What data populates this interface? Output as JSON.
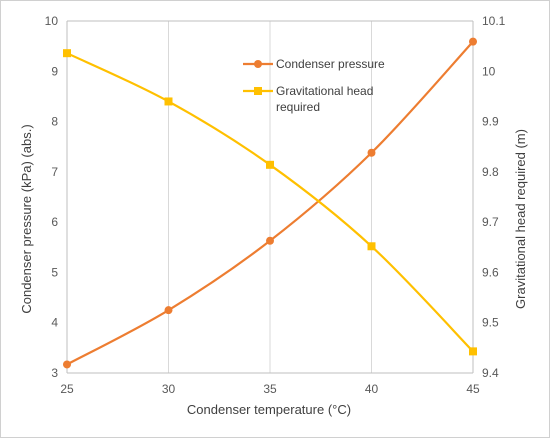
{
  "chart_data": {
    "type": "line",
    "xlabel": "Condenser temperature (°C)",
    "ylabel_left": "Condenser pressure (kPa) (abs.)",
    "ylabel_right": "Gravitational head required  (m)",
    "x": [
      25,
      30,
      35,
      40,
      45
    ],
    "xlim": [
      25,
      45
    ],
    "x_ticks": [
      "25",
      "30",
      "35",
      "40",
      "45"
    ],
    "ylim_left": [
      3,
      10
    ],
    "y_ticks_left": [
      "3",
      "4",
      "5",
      "6",
      "7",
      "8",
      "9",
      "10"
    ],
    "ylim_right": [
      9.4,
      10.1
    ],
    "y_ticks_right": [
      "9.4",
      "9.5",
      "9.6",
      "9.7",
      "9.8",
      "9.9",
      "10",
      "10.1"
    ],
    "grid": "vertical",
    "legend_position": "top-center",
    "series": [
      {
        "name": "Condenser pressure",
        "axis": "left",
        "color": "#ED7D31",
        "marker": "circle",
        "values": [
          3.17,
          4.25,
          5.63,
          7.38,
          9.59
        ]
      },
      {
        "name_lines": [
          "Gravitational head",
          "required"
        ],
        "axis": "right",
        "color": "#FFC000",
        "marker": "square",
        "values": [
          10.036,
          9.94,
          9.814,
          9.652,
          9.443
        ]
      }
    ]
  }
}
